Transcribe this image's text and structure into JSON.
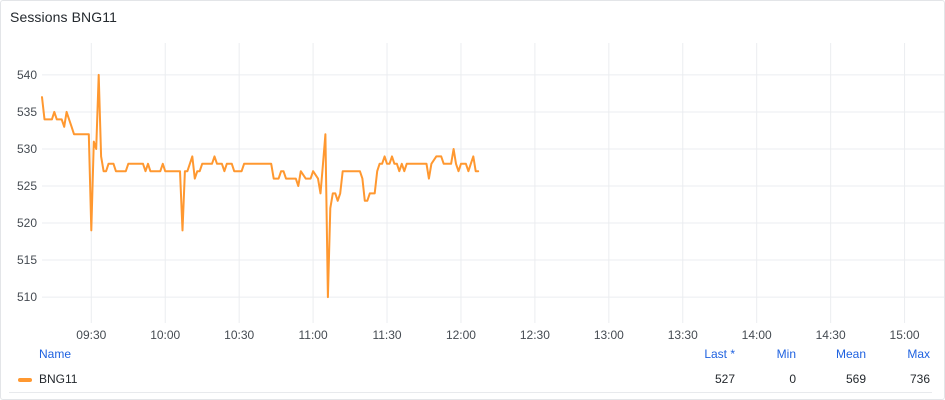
{
  "panel": {
    "title": "Sessions BNG11"
  },
  "legend": {
    "headers": {
      "name": "Name",
      "last": "Last *",
      "min": "Min",
      "mean": "Mean",
      "max": "Max"
    },
    "rows": [
      {
        "name": "BNG11",
        "color": "#ff9830",
        "last": "527",
        "min": "0",
        "mean": "569",
        "max": "736"
      }
    ]
  },
  "chart_data": {
    "type": "line",
    "title": "Sessions BNG11",
    "xlabel": "",
    "ylabel": "",
    "x_ticks": [
      "09:30",
      "10:00",
      "10:30",
      "11:00",
      "11:30",
      "12:00",
      "12:30",
      "13:00",
      "13:30",
      "14:00",
      "14:30",
      "15:00"
    ],
    "y_ticks": [
      510,
      515,
      520,
      525,
      530,
      535,
      540
    ],
    "xlim": [
      "09:10",
      "15:16"
    ],
    "ylim": [
      506.5,
      543.5
    ],
    "grid": true,
    "series": [
      {
        "name": "BNG11",
        "color": "#ff9830",
        "points": [
          [
            "09:10",
            537
          ],
          [
            "09:11",
            534
          ],
          [
            "09:14",
            534
          ],
          [
            "09:15",
            535
          ],
          [
            "09:16",
            534
          ],
          [
            "09:18",
            534
          ],
          [
            "09:19",
            533
          ],
          [
            "09:20",
            535
          ],
          [
            "09:21",
            534
          ],
          [
            "09:22",
            533
          ],
          [
            "09:23",
            532
          ],
          [
            "09:29",
            532
          ],
          [
            "09:30",
            519
          ],
          [
            "09:31",
            531
          ],
          [
            "09:32",
            530
          ],
          [
            "09:33",
            540
          ],
          [
            "09:34",
            529
          ],
          [
            "09:35",
            527
          ],
          [
            "09:36",
            527
          ],
          [
            "09:37",
            528
          ],
          [
            "09:39",
            528
          ],
          [
            "09:40",
            527
          ],
          [
            "09:44",
            527
          ],
          [
            "09:45",
            528
          ],
          [
            "09:51",
            528
          ],
          [
            "09:52",
            527
          ],
          [
            "09:53",
            528
          ],
          [
            "09:54",
            527
          ],
          [
            "09:58",
            527
          ],
          [
            "09:59",
            528
          ],
          [
            "10:00",
            527
          ],
          [
            "10:06",
            527
          ],
          [
            "10:07",
            519
          ],
          [
            "10:08",
            527
          ],
          [
            "10:09",
            527
          ],
          [
            "10:11",
            529
          ],
          [
            "10:12",
            526
          ],
          [
            "10:13",
            527
          ],
          [
            "10:14",
            527
          ],
          [
            "10:15",
            528
          ],
          [
            "10:19",
            528
          ],
          [
            "10:20",
            529
          ],
          [
            "10:21",
            528
          ],
          [
            "10:23",
            528
          ],
          [
            "10:24",
            527
          ],
          [
            "10:25",
            528
          ],
          [
            "10:27",
            528
          ],
          [
            "10:28",
            527
          ],
          [
            "10:31",
            527
          ],
          [
            "10:32",
            528
          ],
          [
            "10:43",
            528
          ],
          [
            "10:44",
            526
          ],
          [
            "10:46",
            526
          ],
          [
            "10:47",
            527
          ],
          [
            "10:48",
            527
          ],
          [
            "10:49",
            526
          ],
          [
            "10:53",
            526
          ],
          [
            "10:54",
            525
          ],
          [
            "10:55",
            527
          ],
          [
            "10:57",
            526
          ],
          [
            "10:59",
            526
          ],
          [
            "11:00",
            527
          ],
          [
            "11:02",
            526
          ],
          [
            "11:03",
            524
          ],
          [
            "11:04",
            528
          ],
          [
            "11:05",
            532
          ],
          [
            "11:06",
            510
          ],
          [
            "11:07",
            522
          ],
          [
            "11:08",
            524
          ],
          [
            "11:09",
            524
          ],
          [
            "11:10",
            523
          ],
          [
            "11:11",
            524
          ],
          [
            "11:12",
            527
          ],
          [
            "11:19",
            527
          ],
          [
            "11:20",
            526
          ],
          [
            "11:21",
            523
          ],
          [
            "11:22",
            523
          ],
          [
            "11:23",
            524
          ],
          [
            "11:25",
            524
          ],
          [
            "11:26",
            527
          ],
          [
            "11:27",
            528
          ],
          [
            "11:28",
            528
          ],
          [
            "11:29",
            529
          ],
          [
            "11:30",
            528
          ],
          [
            "11:31",
            528
          ],
          [
            "11:32",
            529
          ],
          [
            "11:33",
            528
          ],
          [
            "11:34",
            528
          ],
          [
            "11:35",
            527
          ],
          [
            "11:36",
            528
          ],
          [
            "11:37",
            527
          ],
          [
            "11:38",
            528
          ],
          [
            "11:46",
            528
          ],
          [
            "11:47",
            526
          ],
          [
            "11:48",
            528
          ],
          [
            "11:50",
            529
          ],
          [
            "11:52",
            529
          ],
          [
            "11:53",
            528
          ],
          [
            "11:56",
            528
          ],
          [
            "11:57",
            530
          ],
          [
            "11:58",
            528
          ],
          [
            "11:59",
            527
          ],
          [
            "12:00",
            528
          ],
          [
            "12:02",
            528
          ],
          [
            "12:03",
            527
          ],
          [
            "12:04",
            528
          ],
          [
            "12:05",
            529
          ],
          [
            "12:06",
            527
          ],
          [
            "12:07",
            527
          ]
        ]
      }
    ]
  }
}
